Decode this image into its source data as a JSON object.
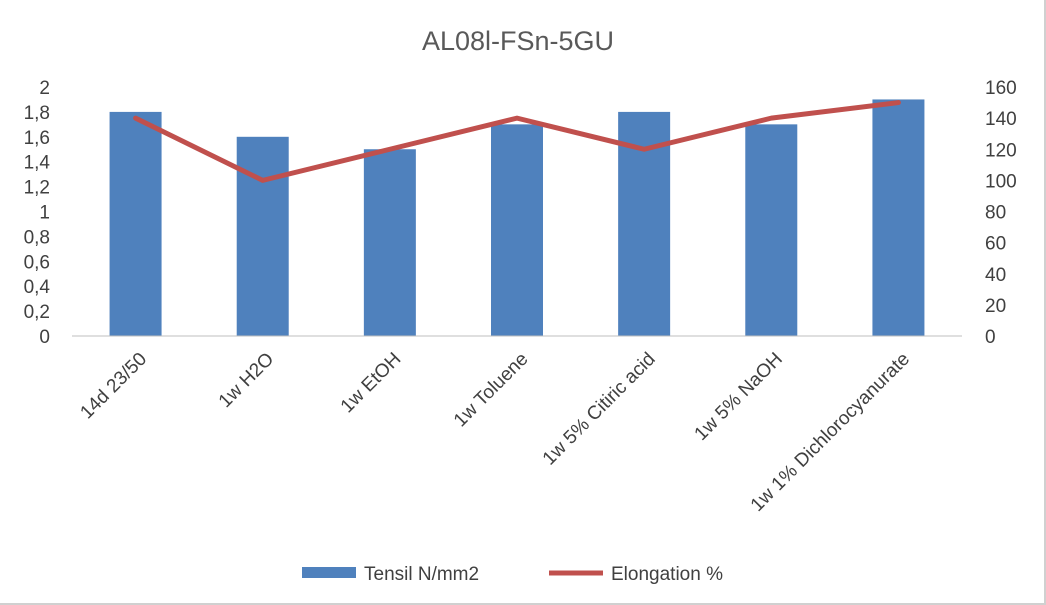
{
  "chart_data": {
    "type": "bar",
    "title": "AL08l-FSn-5GU",
    "categories": [
      "14d 23/50",
      "1w H2O",
      "1w EtOH",
      "1w Toluene",
      "1w 5% Citiric acid",
      "1w 5% NaOH",
      "1w 1% Dichlorocyanurate"
    ],
    "series": [
      {
        "name": "Tensil N/mm2",
        "type": "bar",
        "axis": "left",
        "color": "#4f81bd",
        "values": [
          1.8,
          1.6,
          1.5,
          1.7,
          1.8,
          1.7,
          1.9
        ]
      },
      {
        "name": "Elongation %",
        "type": "line",
        "axis": "right",
        "color": "#c0504d",
        "values": [
          140,
          100,
          120,
          140,
          120,
          140,
          150
        ]
      }
    ],
    "y_left": {
      "min": 0,
      "max": 2,
      "step": 0.2,
      "tick_labels": [
        "0",
        "0,2",
        "0,4",
        "0,6",
        "0,8",
        "1",
        "1,2",
        "1,4",
        "1,6",
        "1,8",
        "2"
      ]
    },
    "y_right": {
      "min": 0,
      "max": 160,
      "step": 20,
      "tick_labels": [
        "0",
        "20",
        "40",
        "60",
        "80",
        "100",
        "120",
        "140",
        "160"
      ]
    },
    "grid": false,
    "legend_position": "bottom"
  }
}
